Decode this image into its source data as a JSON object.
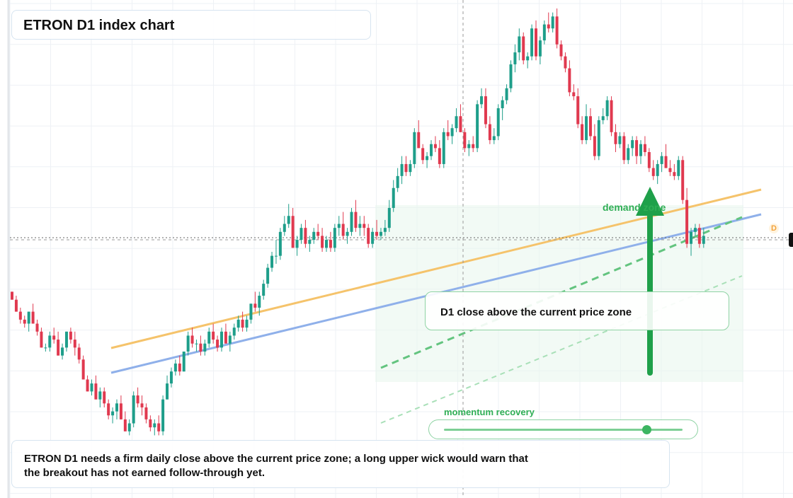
{
  "title": "ETRON D1 index chart",
  "callout": "D1 close above the current price zone",
  "zone_label": "demand zone",
  "momentum": {
    "label": "momentum recovery",
    "level": 0.85
  },
  "note": "ETRON D1 needs a firm daily close above the current price zone; a long upper wick would warn that the breakout has not earned follow-through yet.",
  "badge": "D",
  "colors": {
    "up": "#1e9e8a",
    "down": "#e0394f",
    "orange_line": "#f5c36b",
    "blue_line": "#8fb0ea",
    "green": "#2fae55"
  },
  "chart_data": {
    "type": "candlestick",
    "interval": "D1",
    "grid": true,
    "current_price": 100,
    "y_range": [
      36,
      158
    ],
    "ohlc": [
      [
        87,
        87,
        85,
        85
      ],
      [
        85,
        86,
        82,
        82
      ],
      [
        82,
        83,
        79,
        80
      ],
      [
        80,
        81,
        78,
        79
      ],
      [
        79,
        82,
        77,
        82
      ],
      [
        82,
        84,
        79,
        79
      ],
      [
        79,
        80,
        76,
        77
      ],
      [
        77,
        78,
        73,
        73
      ],
      [
        73,
        74,
        72,
        73
      ],
      [
        73,
        77,
        72,
        76
      ],
      [
        76,
        78,
        74,
        75
      ],
      [
        75,
        77,
        71,
        71
      ],
      [
        71,
        74,
        70,
        73
      ],
      [
        73,
        77,
        72,
        77
      ],
      [
        77,
        78,
        74,
        75
      ],
      [
        75,
        77,
        71,
        73
      ],
      [
        73,
        74,
        69,
        70
      ],
      [
        70,
        71,
        65,
        65
      ],
      [
        65,
        66,
        62,
        62
      ],
      [
        62,
        65,
        61,
        64
      ],
      [
        64,
        66,
        60,
        60
      ],
      [
        60,
        63,
        58,
        62
      ],
      [
        62,
        63,
        58,
        59
      ],
      [
        59,
        60,
        55,
        56
      ],
      [
        56,
        58,
        54,
        57
      ],
      [
        57,
        60,
        55,
        59
      ],
      [
        59,
        61,
        55,
        55
      ],
      [
        55,
        57,
        52,
        52
      ],
      [
        52,
        55,
        51,
        54
      ],
      [
        54,
        62,
        53,
        61
      ],
      [
        61,
        63,
        58,
        59
      ],
      [
        59,
        61,
        56,
        58
      ],
      [
        58,
        59,
        54,
        55
      ],
      [
        55,
        56,
        52,
        53
      ],
      [
        53,
        55,
        51,
        54
      ],
      [
        54,
        56,
        51,
        52
      ],
      [
        52,
        61,
        51,
        60
      ],
      [
        60,
        66,
        60,
        64
      ],
      [
        64,
        68,
        63,
        67
      ],
      [
        67,
        70,
        66,
        69
      ],
      [
        69,
        71,
        66,
        67
      ],
      [
        67,
        72,
        67,
        72
      ],
      [
        72,
        77,
        71,
        76
      ],
      [
        76,
        78,
        73,
        74
      ],
      [
        74,
        75,
        72,
        74
      ],
      [
        74,
        76,
        71,
        72
      ],
      [
        72,
        75,
        71,
        74
      ],
      [
        74,
        78,
        73,
        77
      ],
      [
        77,
        79,
        74,
        75
      ],
      [
        75,
        76,
        72,
        73
      ],
      [
        73,
        78,
        72,
        77
      ],
      [
        77,
        79,
        74,
        74
      ],
      [
        74,
        77,
        72,
        76
      ],
      [
        76,
        79,
        75,
        78
      ],
      [
        78,
        81,
        77,
        80
      ],
      [
        80,
        82,
        77,
        78
      ],
      [
        78,
        81,
        77,
        80
      ],
      [
        80,
        84,
        79,
        84
      ],
      [
        84,
        87,
        82,
        83
      ],
      [
        83,
        87,
        81,
        86
      ],
      [
        86,
        90,
        85,
        89
      ],
      [
        89,
        94,
        88,
        93
      ],
      [
        93,
        97,
        92,
        96
      ],
      [
        96,
        100,
        94,
        96
      ],
      [
        96,
        103,
        95,
        102
      ],
      [
        102,
        106,
        101,
        104
      ],
      [
        104,
        109,
        103,
        106
      ],
      [
        106,
        108,
        98,
        98
      ],
      [
        98,
        101,
        96,
        100
      ],
      [
        100,
        104,
        99,
        103
      ],
      [
        103,
        105,
        98,
        99
      ],
      [
        99,
        101,
        97,
        100
      ],
      [
        100,
        103,
        99,
        102
      ],
      [
        102,
        104,
        100,
        101
      ],
      [
        101,
        103,
        97,
        98
      ],
      [
        98,
        101,
        97,
        100
      ],
      [
        100,
        102,
        97,
        98
      ],
      [
        98,
        104,
        97,
        103
      ],
      [
        103,
        106,
        101,
        104
      ],
      [
        104,
        107,
        100,
        101
      ],
      [
        101,
        103,
        99,
        102
      ],
      [
        102,
        108,
        101,
        107
      ],
      [
        107,
        110,
        102,
        103
      ],
      [
        103,
        106,
        101,
        104
      ],
      [
        104,
        106,
        101,
        103
      ],
      [
        103,
        104,
        98,
        99
      ],
      [
        99,
        103,
        98,
        102
      ],
      [
        102,
        105,
        100,
        101
      ],
      [
        101,
        103,
        100,
        102
      ],
      [
        102,
        105,
        101,
        103
      ],
      [
        103,
        110,
        102,
        108
      ],
      [
        108,
        115,
        107,
        113
      ],
      [
        113,
        118,
        112,
        116
      ],
      [
        116,
        121,
        114,
        119
      ],
      [
        119,
        121,
        116,
        117
      ],
      [
        117,
        120,
        116,
        119
      ],
      [
        119,
        128,
        118,
        127
      ],
      [
        127,
        130,
        123,
        123
      ],
      [
        123,
        124,
        119,
        120
      ],
      [
        120,
        122,
        118,
        121
      ],
      [
        121,
        125,
        120,
        124
      ],
      [
        124,
        126,
        122,
        123
      ],
      [
        123,
        125,
        118,
        119
      ],
      [
        119,
        128,
        118,
        127
      ],
      [
        127,
        130,
        125,
        126
      ],
      [
        126,
        129,
        124,
        128
      ],
      [
        128,
        133,
        127,
        131
      ],
      [
        131,
        134,
        127,
        127
      ],
      [
        127,
        128,
        122,
        123
      ],
      [
        123,
        125,
        121,
        124
      ],
      [
        124,
        126,
        122,
        123
      ],
      [
        123,
        135,
        122,
        134
      ],
      [
        134,
        138,
        133,
        136
      ],
      [
        136,
        138,
        128,
        129
      ],
      [
        129,
        131,
        124,
        125
      ],
      [
        125,
        128,
        124,
        126
      ],
      [
        126,
        134,
        125,
        133
      ],
      [
        133,
        136,
        130,
        135
      ],
      [
        135,
        139,
        134,
        138
      ],
      [
        138,
        145,
        137,
        144
      ],
      [
        144,
        149,
        142,
        147
      ],
      [
        147,
        153,
        145,
        151
      ],
      [
        151,
        152,
        144,
        145
      ],
      [
        145,
        147,
        143,
        146
      ],
      [
        146,
        154,
        145,
        153
      ],
      [
        153,
        155,
        145,
        146
      ],
      [
        146,
        151,
        144,
        150
      ],
      [
        150,
        155,
        149,
        154
      ],
      [
        154,
        157,
        152,
        153
      ],
      [
        153,
        157,
        152,
        156
      ],
      [
        156,
        158,
        148,
        149
      ],
      [
        149,
        150,
        145,
        146
      ],
      [
        146,
        147,
        142,
        143
      ],
      [
        143,
        145,
        136,
        137
      ],
      [
        137,
        139,
        135,
        136
      ],
      [
        136,
        138,
        128,
        129
      ],
      [
        129,
        131,
        124,
        125
      ],
      [
        125,
        134,
        124,
        131
      ],
      [
        131,
        133,
        125,
        126
      ],
      [
        126,
        129,
        120,
        121
      ],
      [
        121,
        131,
        120,
        130
      ],
      [
        130,
        133,
        129,
        131
      ],
      [
        131,
        136,
        130,
        135
      ],
      [
        135,
        136,
        126,
        127
      ],
      [
        127,
        129,
        122,
        124
      ],
      [
        124,
        127,
        123,
        126
      ],
      [
        126,
        127,
        119,
        120
      ],
      [
        120,
        124,
        119,
        123
      ],
      [
        123,
        126,
        121,
        125
      ],
      [
        125,
        126,
        119,
        121
      ],
      [
        121,
        125,
        119,
        124
      ],
      [
        124,
        126,
        121,
        122
      ],
      [
        122,
        123,
        117,
        118
      ],
      [
        118,
        120,
        115,
        116
      ],
      [
        116,
        120,
        114,
        119
      ],
      [
        119,
        122,
        117,
        121
      ],
      [
        121,
        124,
        118,
        118
      ],
      [
        118,
        120,
        116,
        117
      ],
      [
        117,
        119,
        115,
        116
      ],
      [
        116,
        121,
        115,
        120
      ],
      [
        120,
        121,
        109,
        110
      ],
      [
        110,
        113,
        98,
        99
      ],
      [
        99,
        103,
        96,
        102
      ],
      [
        102,
        104,
        101,
        103
      ],
      [
        103,
        104,
        98,
        99
      ],
      [
        99,
        103,
        98,
        101
      ]
    ]
  }
}
